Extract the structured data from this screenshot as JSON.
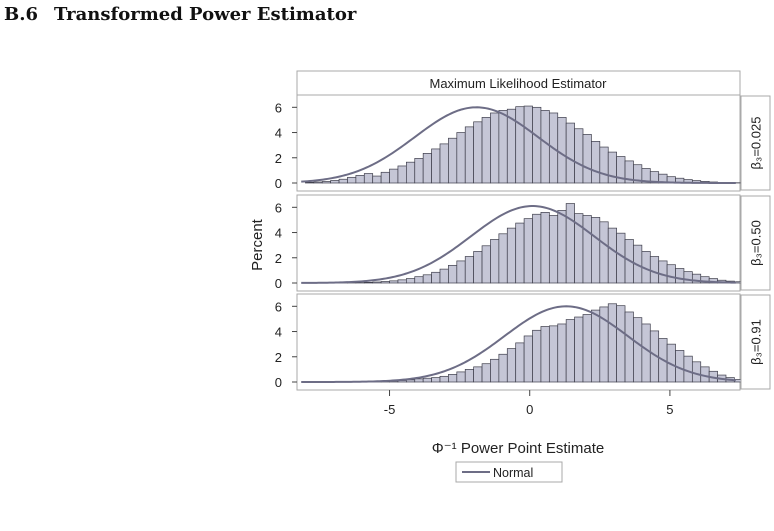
{
  "heading": {
    "number": "B.6",
    "title": "Transformed Power Estimator"
  },
  "chart_data": {
    "type": "bar",
    "title": "Maximum Likelihood Estimator",
    "xlabel": "Φ⁻¹ Power Point Estimate",
    "ylabel": "Percent",
    "xlim": [
      -8.3,
      7.5
    ],
    "ylim": [
      0,
      6.5
    ],
    "x_ticks": [
      -5,
      0,
      5
    ],
    "y_ticks": [
      0,
      2,
      4,
      6
    ],
    "bin_start": -8.0,
    "bin_width": 0.3,
    "legend": {
      "label": "Normal",
      "position": "bottom"
    },
    "grid": false,
    "panels": [
      {
        "label": "β₃=0.025",
        "normal_curve": {
          "mean": -1.9,
          "sd": 2.2,
          "peak": 6.0
        },
        "values": [
          0.05,
          0.08,
          0.12,
          0.2,
          0.3,
          0.45,
          0.6,
          0.75,
          0.55,
          0.85,
          1.1,
          1.35,
          1.65,
          1.95,
          2.35,
          2.7,
          3.1,
          3.55,
          4.0,
          4.45,
          4.85,
          5.2,
          5.55,
          5.75,
          5.85,
          6.05,
          6.1,
          6.0,
          5.75,
          5.55,
          5.2,
          4.75,
          4.3,
          3.85,
          3.3,
          2.85,
          2.45,
          2.1,
          1.75,
          1.45,
          1.15,
          0.9,
          0.7,
          0.5,
          0.38,
          0.27,
          0.19,
          0.13,
          0.08,
          0.05,
          0.03,
          0.02,
          0.01
        ]
      },
      {
        "label": "β₃=0.50",
        "normal_curve": {
          "mean": 0.1,
          "sd": 2.2,
          "peak": 6.1
        },
        "values": [
          0.0,
          0.0,
          0.0,
          0.01,
          0.01,
          0.02,
          0.03,
          0.05,
          0.08,
          0.12,
          0.17,
          0.25,
          0.35,
          0.5,
          0.65,
          0.85,
          1.1,
          1.4,
          1.75,
          2.1,
          2.5,
          2.95,
          3.45,
          3.9,
          4.35,
          4.75,
          5.1,
          5.45,
          5.6,
          5.35,
          5.75,
          6.3,
          5.5,
          5.35,
          5.2,
          4.85,
          4.35,
          3.95,
          3.45,
          3.0,
          2.5,
          2.1,
          1.75,
          1.45,
          1.15,
          0.9,
          0.7,
          0.5,
          0.35,
          0.22,
          0.15,
          0.1,
          0.05
        ]
      },
      {
        "label": "β₃=0.91",
        "normal_curve": {
          "mean": 1.3,
          "sd": 2.2,
          "peak": 6.0
        },
        "values": [
          0.0,
          0.0,
          0.0,
          0.0,
          0.0,
          0.0,
          0.01,
          0.02,
          0.03,
          0.05,
          0.08,
          0.12,
          0.17,
          0.25,
          0.3,
          0.35,
          0.45,
          0.6,
          0.8,
          1.0,
          1.2,
          1.45,
          1.8,
          2.2,
          2.65,
          3.1,
          3.65,
          4.1,
          4.4,
          4.45,
          4.6,
          4.95,
          5.15,
          5.35,
          5.7,
          5.95,
          6.2,
          6.05,
          5.55,
          5.1,
          4.6,
          4.05,
          3.45,
          3.0,
          2.5,
          2.05,
          1.6,
          1.2,
          0.85,
          0.55,
          0.35,
          0.2,
          0.1
        ]
      }
    ]
  }
}
